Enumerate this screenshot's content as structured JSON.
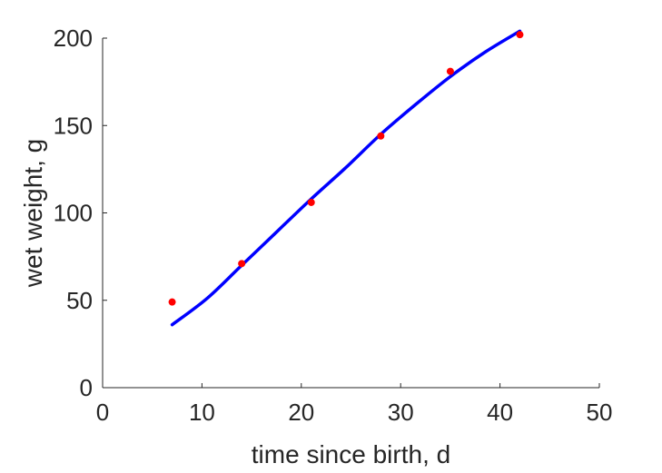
{
  "chart_data": {
    "type": "scatter",
    "title": "",
    "xlabel": "time since birth, d",
    "ylabel": "wet weight, g",
    "xlim": [
      0,
      50
    ],
    "ylim": [
      0,
      200
    ],
    "xticks": [
      0,
      10,
      20,
      30,
      40,
      50
    ],
    "yticks": [
      0,
      50,
      100,
      150,
      200
    ],
    "grid": false,
    "legend": "none",
    "series": [
      {
        "kind": "scatter",
        "color": "#ff0000",
        "x": [
          7,
          14,
          21,
          28,
          35,
          42
        ],
        "y": [
          49,
          71,
          106,
          144,
          181,
          202
        ]
      },
      {
        "kind": "line",
        "color": "#0000ff",
        "x": [
          7,
          10.5,
          14,
          17.5,
          21,
          24.5,
          28,
          31.5,
          35,
          38.5,
          42
        ],
        "y": [
          36,
          51,
          70,
          89,
          108,
          126,
          145,
          162,
          178,
          192,
          204
        ]
      }
    ]
  }
}
